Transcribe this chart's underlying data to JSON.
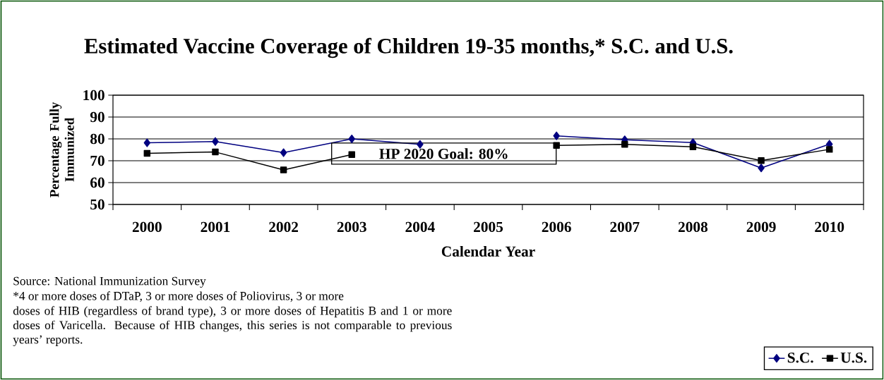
{
  "chart_data": {
    "type": "line",
    "title": "Estimated Vaccine Coverage of Children 19-35 months,*  S.C. and U.S.",
    "xlabel": "Calendar Year",
    "ylabel": "Percentage Fully Immunized",
    "categories": [
      "2000",
      "2001",
      "2002",
      "2003",
      "2004",
      "2005",
      "2006",
      "2007",
      "2008",
      "2009",
      "2010"
    ],
    "series": [
      {
        "name": "S.C.",
        "color": "#000080",
        "marker": "diamond",
        "values": [
          78.2,
          78.8,
          73.7,
          80.0,
          77.5,
          null,
          81.4,
          79.6,
          78.3,
          66.7,
          77.6
        ]
      },
      {
        "name": "U.S.",
        "color": "#000000",
        "marker": "square",
        "values": [
          73.4,
          74.0,
          65.8,
          72.8,
          null,
          null,
          77.0,
          77.5,
          76.4,
          70.1,
          75.2
        ]
      }
    ],
    "ylim": [
      50,
      100
    ],
    "yticks": [
      50,
      60,
      70,
      80,
      90,
      100
    ],
    "grid": "y",
    "legend": "bottom right",
    "line_style": "solid",
    "annotations": [
      "HP 2020 Goal: 80%",
      "Source:  National Immunization Survey",
      "*4 or more doses of DTaP, 3 or more doses of  Poliovirus, 3 or more",
      "doses of HIB (regardless of brand type), 3 or more doses of Hepatitis B and 1 or more doses of Varicella. Because of HIB changes, this series is not comparable to previous years’ reports."
    ]
  }
}
